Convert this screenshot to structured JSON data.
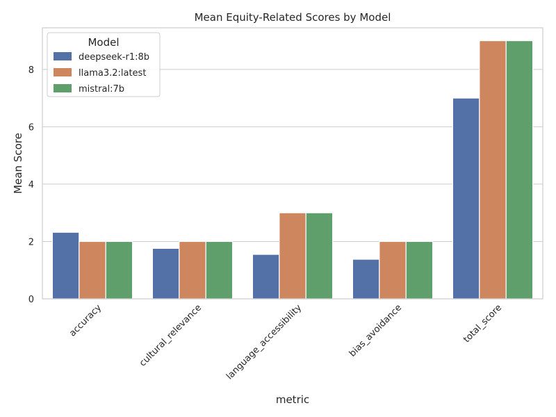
{
  "chart_data": {
    "type": "bar",
    "title": "Mean Equity-Related Scores by Model",
    "xlabel": "metric",
    "ylabel": "Mean Score",
    "categories": [
      "accuracy",
      "cultural_relevance",
      "language_accessibility",
      "bias_avoidance",
      "total_score"
    ],
    "series": [
      {
        "name": "deepseek-r1:8b",
        "color": "#5471a7",
        "values": [
          2.32,
          1.76,
          1.55,
          1.38,
          7.0
        ]
      },
      {
        "name": "llama3.2:latest",
        "color": "#cd865e",
        "values": [
          2.0,
          2.0,
          3.0,
          2.0,
          9.0
        ]
      },
      {
        "name": "mistral:7b",
        "color": "#5e9f6c",
        "values": [
          2.0,
          2.0,
          3.0,
          2.0,
          9.0
        ]
      }
    ],
    "ylim": [
      0,
      9.45
    ],
    "yticks": [
      0,
      2,
      4,
      6,
      8
    ],
    "grid": true,
    "legend_title": "Model",
    "legend_position": "top-left"
  }
}
